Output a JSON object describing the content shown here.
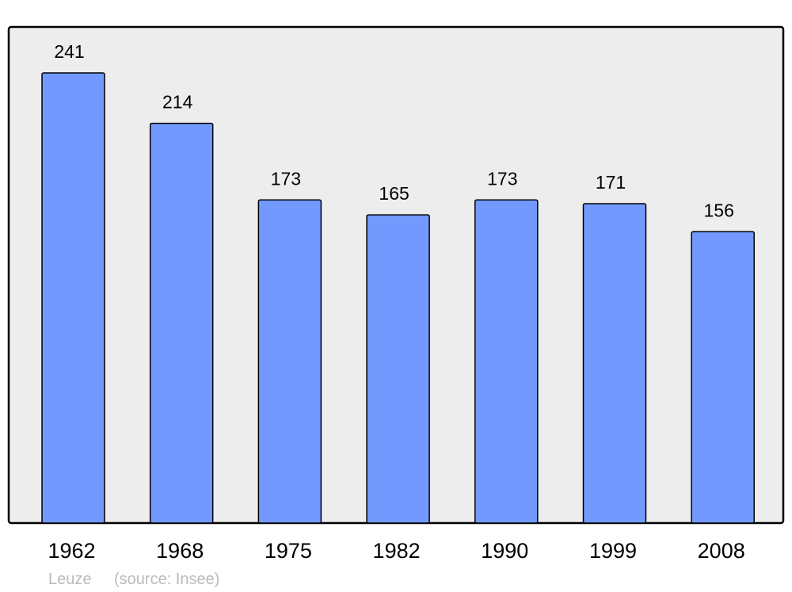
{
  "chart_data": {
    "type": "bar",
    "categories": [
      "1962",
      "1968",
      "1975",
      "1982",
      "1990",
      "1999",
      "2008"
    ],
    "values": [
      241,
      214,
      173,
      165,
      173,
      171,
      156
    ],
    "data_labels": [
      "241",
      "214",
      "173",
      "165",
      "173",
      "171",
      "156"
    ],
    "title": "",
    "xlabel": "",
    "ylabel": "",
    "ylim": [
      0,
      265.6
    ],
    "grid": false,
    "colors": {
      "bar": "#7399ff",
      "plot_background": "#ededed",
      "border": "#000000"
    }
  },
  "footer": {
    "place": "Leuze",
    "source": "(source: Insee)"
  }
}
